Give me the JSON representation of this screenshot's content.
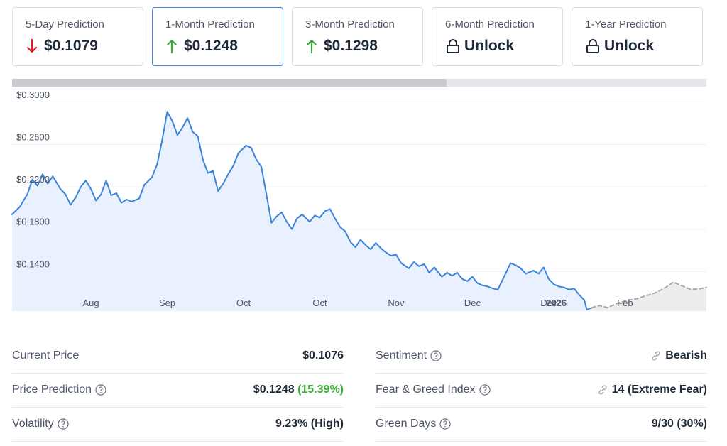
{
  "cards": [
    {
      "title": "5-Day Prediction",
      "value": "$0.1079",
      "direction": "down",
      "icon": "arrow-down-icon",
      "active": false
    },
    {
      "title": "1-Month Prediction",
      "value": "$0.1248",
      "direction": "up",
      "icon": "arrow-up-icon",
      "active": true
    },
    {
      "title": "3-Month Prediction",
      "value": "$0.1298",
      "direction": "up",
      "icon": "arrow-up-icon",
      "active": false
    },
    {
      "title": "6-Month Prediction",
      "value": "Unlock",
      "direction": "locked",
      "icon": "lock-icon",
      "active": false
    },
    {
      "title": "1-Year Prediction",
      "value": "Unlock",
      "direction": "locked",
      "icon": "lock-icon",
      "active": false
    }
  ],
  "progress": {
    "fraction": 0.626
  },
  "colors": {
    "up": "#3cae3c",
    "down": "#e11d2a",
    "line": "#3b82dc",
    "area": "#e8f1fd",
    "forecast": "#a8a8a8",
    "forecast_area": "#ededed",
    "active_border": "#3b82f6"
  },
  "chart_data": {
    "type": "area",
    "y_ticks": [
      "$0.3000",
      "$0.2600",
      "$0.2200",
      "$0.1800",
      "$0.1400"
    ],
    "y_tick_values": [
      0.3,
      0.26,
      0.22,
      0.18,
      0.14
    ],
    "ylim": [
      0.1027,
      0.3106
    ],
    "x_tick_labels": [
      "Aug",
      "Sep",
      "Oct",
      "Oct",
      "Nov",
      "Dec",
      "Dec",
      "2026",
      "Feb"
    ],
    "x_tick_bold": [
      false,
      false,
      false,
      false,
      false,
      false,
      false,
      true,
      false
    ],
    "x_tick_dates": [
      "2025-08-01",
      "2025-08-31",
      "2025-09-30",
      "2025-10-30",
      "2025-11-29",
      "2025-12-29",
      "2026-01-28",
      "2026-01-31",
      "2026-02-27"
    ],
    "x_range": [
      "2025-07-01",
      "2026-03-31"
    ],
    "grid": true,
    "series": [
      {
        "kind": "historical",
        "points": [
          [
            "2025-07-01",
            0.194
          ],
          [
            "2025-07-04",
            0.201
          ],
          [
            "2025-07-07",
            0.213
          ],
          [
            "2025-07-09",
            0.227
          ],
          [
            "2025-07-11",
            0.221
          ],
          [
            "2025-07-13",
            0.232
          ],
          [
            "2025-07-15",
            0.223
          ],
          [
            "2025-07-17",
            0.23
          ],
          [
            "2025-07-20",
            0.218
          ],
          [
            "2025-07-22",
            0.213
          ],
          [
            "2025-07-24",
            0.203
          ],
          [
            "2025-07-26",
            0.21
          ],
          [
            "2025-07-28",
            0.22
          ],
          [
            "2025-07-30",
            0.226
          ],
          [
            "2025-08-01",
            0.218
          ],
          [
            "2025-08-03",
            0.207
          ],
          [
            "2025-08-05",
            0.213
          ],
          [
            "2025-08-07",
            0.226
          ],
          [
            "2025-08-09",
            0.212
          ],
          [
            "2025-08-11",
            0.214
          ],
          [
            "2025-08-13",
            0.205
          ],
          [
            "2025-08-15",
            0.208
          ],
          [
            "2025-08-17",
            0.206
          ],
          [
            "2025-08-20",
            0.209
          ],
          [
            "2025-08-22",
            0.222
          ],
          [
            "2025-08-25",
            0.229
          ],
          [
            "2025-08-27",
            0.241
          ],
          [
            "2025-08-29",
            0.264
          ],
          [
            "2025-08-31",
            0.291
          ],
          [
            "2025-09-02",
            0.282
          ],
          [
            "2025-09-04",
            0.269
          ],
          [
            "2025-09-06",
            0.276
          ],
          [
            "2025-09-08",
            0.285
          ],
          [
            "2025-09-10",
            0.272
          ],
          [
            "2025-09-12",
            0.268
          ],
          [
            "2025-09-14",
            0.246
          ],
          [
            "2025-09-16",
            0.233
          ],
          [
            "2025-09-18",
            0.235
          ],
          [
            "2025-09-20",
            0.216
          ],
          [
            "2025-09-22",
            0.223
          ],
          [
            "2025-09-24",
            0.232
          ],
          [
            "2025-09-26",
            0.24
          ],
          [
            "2025-09-28",
            0.252
          ],
          [
            "2025-10-01",
            0.259
          ],
          [
            "2025-10-03",
            0.257
          ],
          [
            "2025-10-05",
            0.246
          ],
          [
            "2025-10-07",
            0.239
          ],
          [
            "2025-10-09",
            0.213
          ],
          [
            "2025-10-11",
            0.186
          ],
          [
            "2025-10-13",
            0.192
          ],
          [
            "2025-10-15",
            0.196
          ],
          [
            "2025-10-17",
            0.187
          ],
          [
            "2025-10-19",
            0.18
          ],
          [
            "2025-10-21",
            0.19
          ],
          [
            "2025-10-23",
            0.194
          ],
          [
            "2025-10-26",
            0.187
          ],
          [
            "2025-10-28",
            0.193
          ],
          [
            "2025-10-30",
            0.191
          ],
          [
            "2025-11-01",
            0.197
          ],
          [
            "2025-11-03",
            0.199
          ],
          [
            "2025-11-05",
            0.19
          ],
          [
            "2025-11-07",
            0.182
          ],
          [
            "2025-11-09",
            0.178
          ],
          [
            "2025-11-11",
            0.168
          ],
          [
            "2025-11-13",
            0.163
          ],
          [
            "2025-11-15",
            0.17
          ],
          [
            "2025-11-17",
            0.165
          ],
          [
            "2025-11-19",
            0.161
          ],
          [
            "2025-11-21",
            0.167
          ],
          [
            "2025-11-23",
            0.162
          ],
          [
            "2025-11-25",
            0.158
          ],
          [
            "2025-11-27",
            0.155
          ],
          [
            "2025-11-29",
            0.156
          ],
          [
            "2025-12-01",
            0.148
          ],
          [
            "2025-12-04",
            0.143
          ],
          [
            "2025-12-06",
            0.149
          ],
          [
            "2025-12-08",
            0.145
          ],
          [
            "2025-12-10",
            0.147
          ],
          [
            "2025-12-12",
            0.139
          ],
          [
            "2025-12-14",
            0.144
          ],
          [
            "2025-12-17",
            0.135
          ],
          [
            "2025-12-19",
            0.139
          ],
          [
            "2025-12-21",
            0.136
          ],
          [
            "2025-12-23",
            0.139
          ],
          [
            "2025-12-25",
            0.133
          ],
          [
            "2025-12-27",
            0.131
          ],
          [
            "2025-12-29",
            0.135
          ],
          [
            "2025-12-31",
            0.129
          ],
          [
            "2026-01-02",
            0.127
          ],
          [
            "2026-01-04",
            0.126
          ],
          [
            "2026-01-06",
            0.124
          ],
          [
            "2026-01-08",
            0.123
          ],
          [
            "2026-01-11",
            0.138
          ],
          [
            "2026-01-13",
            0.148
          ],
          [
            "2026-01-15",
            0.146
          ],
          [
            "2026-01-17",
            0.143
          ],
          [
            "2026-01-19",
            0.138
          ],
          [
            "2026-01-22",
            0.141
          ],
          [
            "2026-01-24",
            0.138
          ],
          [
            "2026-01-26",
            0.144
          ],
          [
            "2026-01-28",
            0.133
          ],
          [
            "2026-01-30",
            0.128
          ],
          [
            "2026-02-01",
            0.126
          ],
          [
            "2026-02-03",
            0.125
          ],
          [
            "2026-02-05",
            0.123
          ],
          [
            "2026-02-07",
            0.124
          ],
          [
            "2026-02-09",
            0.118
          ],
          [
            "2026-02-11",
            0.113
          ],
          [
            "2026-02-12",
            0.104
          ],
          [
            "2026-02-14",
            0.106
          ]
        ]
      },
      {
        "kind": "forecast",
        "points": [
          [
            "2026-02-14",
            0.106
          ],
          [
            "2026-02-17",
            0.108
          ],
          [
            "2026-02-20",
            0.106
          ],
          [
            "2026-02-24",
            0.11
          ],
          [
            "2026-02-28",
            0.113
          ],
          [
            "2026-03-03",
            0.114
          ],
          [
            "2026-03-07",
            0.117
          ],
          [
            "2026-03-11",
            0.12
          ],
          [
            "2026-03-15",
            0.125
          ],
          [
            "2026-03-18",
            0.13
          ],
          [
            "2026-03-21",
            0.127
          ],
          [
            "2026-03-25",
            0.123
          ],
          [
            "2026-03-29",
            0.124
          ],
          [
            "2026-03-31",
            0.125
          ]
        ]
      }
    ]
  },
  "stats_left": [
    {
      "label": "Current Price",
      "value": "$0.1076",
      "extra": "",
      "help": false,
      "tone": "dark"
    },
    {
      "label": "Price Prediction",
      "value": "$0.1248 ",
      "extra": "(15.39%)",
      "help": true,
      "tone": "dark"
    },
    {
      "label": "Volatility",
      "value": "9.23% (High)",
      "extra": "",
      "help": true,
      "tone": "red"
    }
  ],
  "stats_right": [
    {
      "label": "Sentiment",
      "value": "Bearish",
      "help": true,
      "link": true,
      "tone": "red"
    },
    {
      "label": "Fear & Greed Index",
      "value": "14 (Extreme Fear)",
      "help": true,
      "link": true,
      "tone": "red"
    },
    {
      "label": "Green Days",
      "value": "9/30 (30%)",
      "help": true,
      "link": false,
      "tone": "red"
    }
  ]
}
